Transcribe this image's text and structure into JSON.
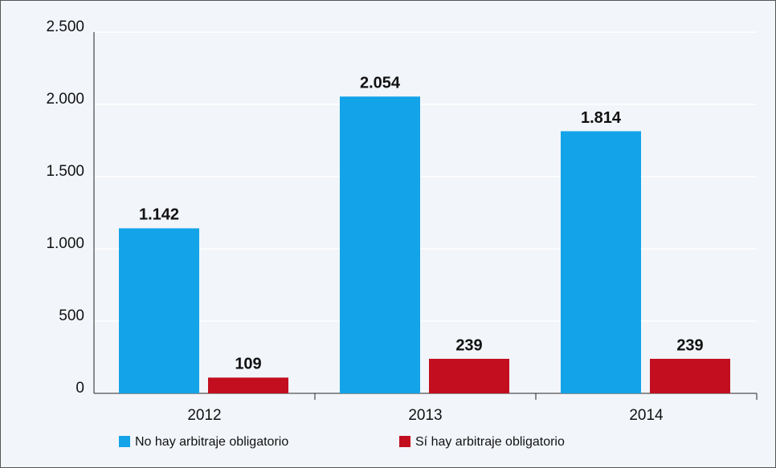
{
  "chart_data": {
    "type": "bar",
    "categories": [
      "2012",
      "2013",
      "2014"
    ],
    "series": [
      {
        "name": "No hay arbitraje obligatorio",
        "color": "#12a3e8",
        "values": [
          1142,
          2054,
          1814
        ],
        "value_labels": [
          "1.142",
          "2.054",
          "1.814"
        ]
      },
      {
        "name": "Sí hay arbitraje obligatorio",
        "color": "#c20e1f",
        "values": [
          109,
          239,
          239
        ]
      }
    ],
    "ylim": [
      0,
      2500
    ],
    "yticks": [
      0,
      500,
      {
        "value": 1000,
        "label": "1.000"
      },
      {
        "value": 1500,
        "label": "1.500"
      },
      {
        "value": 2000,
        "label": "2.000"
      },
      {
        "value": 2500,
        "label": "2.500"
      }
    ],
    "grid": true,
    "legend": "bottom"
  }
}
